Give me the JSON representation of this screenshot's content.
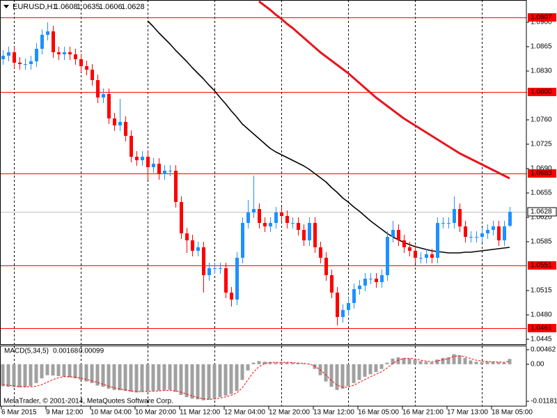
{
  "chart_data": {
    "type": "candlestick",
    "symbol": "EURUSD,H1",
    "up_color": "#1e90ff",
    "down_color": "#ff0000",
    "open": [
      1.0847,
      1.0852,
      1.0857,
      1.0842,
      1.084,
      1.084,
      1.0844,
      1.0862,
      1.0882,
      1.0887,
      1.0857,
      1.0854,
      1.0857,
      1.0854,
      1.0847,
      1.0837,
      1.0832,
      1.0817,
      1.0792,
      1.0797,
      1.0762,
      1.0752,
      1.0757,
      1.0737,
      1.0707,
      1.0702,
      1.0707,
      1.0692,
      1.0697,
      1.0682,
      1.0687,
      1.0687,
      1.0642,
      1.0597,
      1.0587,
      1.0572,
      1.0577,
      1.0537,
      1.0547,
      1.0547,
      1.0547,
      1.0512,
      1.0502,
      1.0562,
      1.0612,
      1.0627,
      1.0632,
      1.0612,
      1.0607,
      1.0612,
      1.0627,
      1.0622,
      1.0612,
      1.0612,
      1.0602,
      1.0587,
      1.0612,
      1.0577,
      1.0562,
      1.0537,
      1.0512,
      1.0477,
      1.0487,
      1.0497,
      1.0517,
      1.0522,
      1.0532,
      1.0532,
      1.0527,
      1.0537,
      1.0592,
      1.0602,
      1.0587,
      1.0577,
      1.0572,
      1.0562,
      1.0562,
      1.0567,
      1.0562,
      1.0612,
      1.0612,
      1.0612,
      1.0632,
      1.0607,
      1.0592,
      1.0592,
      1.0592,
      1.0597,
      1.0602,
      1.0607,
      1.0587,
      1.0608
    ],
    "high": [
      1.086,
      1.0865,
      1.0865,
      1.085,
      1.0848,
      1.0852,
      1.087,
      1.089,
      1.09,
      1.0895,
      1.0865,
      1.0865,
      1.0865,
      1.0862,
      1.0855,
      1.0845,
      1.084,
      1.0825,
      1.0805,
      1.0805,
      1.077,
      1.079,
      1.0765,
      1.0745,
      1.0715,
      1.0715,
      1.0715,
      1.0705,
      1.0705,
      1.0695,
      1.0695,
      1.0695,
      1.065,
      1.0605,
      1.0595,
      1.0585,
      1.0585,
      1.0555,
      1.0555,
      1.0555,
      1.0555,
      1.052,
      1.057,
      1.062,
      1.0645,
      1.068,
      1.064,
      1.062,
      1.062,
      1.0635,
      1.0635,
      1.063,
      1.062,
      1.062,
      1.061,
      1.062,
      1.062,
      1.0585,
      1.057,
      1.0545,
      1.052,
      1.0495,
      1.0505,
      1.0525,
      1.053,
      1.054,
      1.054,
      1.054,
      1.0545,
      1.06,
      1.0615,
      1.061,
      1.0595,
      1.0585,
      1.058,
      1.057,
      1.0575,
      1.0575,
      1.062,
      1.062,
      1.062,
      1.065,
      1.064,
      1.0615,
      1.06,
      1.06,
      1.0605,
      1.061,
      1.0615,
      1.0615,
      1.0615,
      1.0635
    ],
    "low": [
      1.0839,
      1.0844,
      1.0834,
      1.0832,
      1.0832,
      1.0832,
      1.0836,
      1.0854,
      1.0874,
      1.0849,
      1.0846,
      1.0846,
      1.0846,
      1.0839,
      1.0829,
      1.0824,
      1.0809,
      1.0784,
      1.0784,
      1.0754,
      1.0744,
      1.0744,
      1.0729,
      1.0699,
      1.0694,
      1.0694,
      1.0674,
      1.0684,
      1.0674,
      1.0674,
      1.0679,
      1.0634,
      1.0589,
      1.0569,
      1.0564,
      1.0564,
      1.0512,
      1.0529,
      1.0539,
      1.0539,
      1.0504,
      1.0492,
      1.0494,
      1.0554,
      1.0604,
      1.0619,
      1.0604,
      1.0599,
      1.0599,
      1.0604,
      1.0614,
      1.0604,
      1.0604,
      1.0594,
      1.0579,
      1.0579,
      1.0569,
      1.0554,
      1.0529,
      1.0504,
      1.0465,
      1.0469,
      1.0479,
      1.0489,
      1.0509,
      1.0514,
      1.0524,
      1.0519,
      1.0519,
      1.0529,
      1.0584,
      1.0579,
      1.0569,
      1.0564,
      1.0554,
      1.0554,
      1.0554,
      1.0554,
      1.0554,
      1.0604,
      1.0604,
      1.0604,
      1.0599,
      1.0584,
      1.0584,
      1.0584,
      1.0584,
      1.0589,
      1.0594,
      1.0579,
      1.0579,
      1.0606
    ],
    "close": [
      1.0852,
      1.0857,
      1.0842,
      1.084,
      1.084,
      1.0844,
      1.0862,
      1.0882,
      1.0887,
      1.0857,
      1.0854,
      1.0857,
      1.0854,
      1.0847,
      1.0837,
      1.0832,
      1.0817,
      1.0792,
      1.0797,
      1.0762,
      1.0752,
      1.0757,
      1.0737,
      1.0707,
      1.0702,
      1.0707,
      1.0692,
      1.0697,
      1.0682,
      1.0687,
      1.0687,
      1.0642,
      1.0597,
      1.0587,
      1.0572,
      1.0577,
      1.0537,
      1.0547,
      1.0547,
      1.0547,
      1.0512,
      1.0502,
      1.0562,
      1.0612,
      1.0627,
      1.0632,
      1.0612,
      1.0607,
      1.0612,
      1.0627,
      1.0622,
      1.0612,
      1.0612,
      1.0602,
      1.0587,
      1.0612,
      1.0577,
      1.0562,
      1.0537,
      1.0512,
      1.0477,
      1.0487,
      1.0497,
      1.0517,
      1.0522,
      1.0532,
      1.0532,
      1.0527,
      1.0537,
      1.0592,
      1.0602,
      1.0587,
      1.0577,
      1.0572,
      1.0562,
      1.0562,
      1.0567,
      1.0562,
      1.0612,
      1.0612,
      1.0612,
      1.0632,
      1.0607,
      1.0592,
      1.0592,
      1.0592,
      1.0597,
      1.0602,
      1.0607,
      1.0587,
      1.0607,
      1.0628
    ],
    "moving_averages": [
      {
        "color": "#000000",
        "values": [
          null,
          null,
          null,
          null,
          null,
          null,
          null,
          null,
          null,
          null,
          null,
          null,
          null,
          null,
          null,
          null,
          null,
          null,
          null,
          null,
          null,
          null,
          null,
          null,
          null,
          null,
          1.0902,
          1.0894,
          1.0885,
          1.0877,
          1.0869,
          1.086,
          1.0852,
          1.0844,
          1.0835,
          1.0827,
          1.0819,
          1.081,
          1.0802,
          1.0792,
          1.0783,
          1.0773,
          1.0764,
          1.0754,
          1.0747,
          1.074,
          1.0733,
          1.0726,
          1.0719,
          1.0714,
          1.071,
          1.0706,
          1.0702,
          1.0698,
          1.0694,
          1.0689,
          1.0683,
          1.0677,
          1.0671,
          1.0663,
          1.0656,
          1.0648,
          1.0642,
          1.0635,
          1.0629,
          1.0622,
          1.0615,
          1.0609,
          1.0603,
          1.0597,
          1.0592,
          1.0588,
          1.0584,
          1.0581,
          1.0578,
          1.0576,
          1.0574,
          1.0572,
          1.0571,
          1.057,
          1.0569,
          1.0569,
          1.0569,
          1.057,
          1.057,
          1.0571,
          1.0572,
          1.0573,
          1.0574,
          1.0575,
          1.0576,
          1.0577
        ]
      },
      {
        "color": "#e8141c",
        "values": [
          null,
          null,
          null,
          null,
          null,
          null,
          null,
          null,
          null,
          null,
          null,
          null,
          null,
          null,
          null,
          null,
          null,
          null,
          null,
          null,
          null,
          null,
          null,
          null,
          null,
          null,
          null,
          null,
          null,
          null,
          null,
          null,
          null,
          null,
          null,
          null,
          null,
          null,
          null,
          null,
          null,
          null,
          null,
          null,
          null,
          null,
          1.093,
          1.0924,
          1.0918,
          1.0911,
          1.0905,
          1.0898,
          1.0892,
          1.0885,
          1.0878,
          1.0871,
          1.0864,
          1.0857,
          1.0851,
          1.0845,
          1.0839,
          1.0833,
          1.0827,
          1.082,
          1.0813,
          1.0806,
          1.0799,
          1.0792,
          1.0786,
          1.078,
          1.0774,
          1.0768,
          1.0762,
          1.0757,
          1.0752,
          1.0747,
          1.0742,
          1.0737,
          1.0732,
          1.0727,
          1.0722,
          1.0717,
          1.0712,
          1.0708,
          1.0704,
          1.07,
          1.0696,
          1.0692,
          1.0688,
          1.0684,
          1.068,
          1.0676
        ]
      }
    ],
    "levels": [
      1.0907,
      {
        "value": 1.08,
        "label": "1.0800"
      },
      1.0683,
      1.0551,
      1.0461
    ],
    "level_color": "#ff0000",
    "xlim": [
      -0.5,
      94
    ],
    "ylim": [
      1.0438,
      1.0932
    ],
    "yticks": [
      {
        "value": 1.09,
        "label": "1.0900"
      },
      1.0865,
      {
        "value": 1.083,
        "label": "1.0830"
      },
      {
        "value": 1.076,
        "label": "1.0760"
      },
      1.0725,
      {
        "value": 1.069,
        "label": "1.0690"
      },
      1.0655,
      {
        "value": 1.062,
        "label": "1.0620"
      },
      1.0585,
      1.0515,
      {
        "value": 1.048,
        "label": "1.0480"
      },
      1.0445
    ],
    "xticks": [
      {
        "value": 0,
        "label": "6 Mar 2015"
      },
      {
        "value": 8,
        "label": "9 Mar 12:00"
      },
      {
        "value": 16,
        "label": "10 Mar 04:00"
      },
      {
        "value": 24,
        "label": "10 Mar 20:00"
      },
      {
        "value": 32,
        "label": "11 Mar 12:00"
      },
      {
        "value": 40,
        "label": "12 Mar 04:00"
      },
      {
        "value": 48,
        "label": "12 Mar 20:00"
      },
      {
        "value": 56,
        "label": "13 Mar 12:00"
      },
      {
        "value": 64,
        "label": "16 Mar 05:00"
      },
      {
        "value": 72,
        "label": "16 Mar 21:00"
      },
      {
        "value": 80,
        "label": "17 Mar 13:00"
      },
      {
        "value": 88,
        "label": "18 Mar 05:00"
      }
    ],
    "xgrid": [
      2,
      14,
      26,
      38,
      50,
      62,
      74,
      86
    ],
    "macd": {
      "title": "MACD(5,34,5)",
      "hist_color": "#a0a0a0",
      "signal_color": "#ff0000",
      "histogram": [
        -0.007,
        -0.0072,
        -0.0073,
        -0.0074,
        -0.0073,
        -0.007,
        -0.006,
        -0.0045,
        -0.0035,
        -0.0036,
        -0.0038,
        -0.004,
        -0.0042,
        -0.0045,
        -0.005,
        -0.0055,
        -0.006,
        -0.0068,
        -0.0072,
        -0.0078,
        -0.0082,
        -0.0083,
        -0.0085,
        -0.0088,
        -0.009,
        -0.0088,
        -0.0087,
        -0.0085,
        -0.0084,
        -0.0083,
        -0.0082,
        -0.0088,
        -0.0098,
        -0.0105,
        -0.011,
        -0.0112,
        -0.0115,
        -0.0113,
        -0.011,
        -0.0105,
        -0.01,
        -0.0095,
        -0.0085,
        -0.005,
        -0.002,
        0.0005,
        0.001,
        0.0008,
        0.0006,
        0.0005,
        0.0006,
        0.0006,
        0.0005,
        0.0004,
        0.0002,
        0.0,
        -0.0015,
        -0.0035,
        -0.0055,
        -0.0072,
        -0.0082,
        -0.0078,
        -0.007,
        -0.006,
        -0.005,
        -0.004,
        -0.0032,
        -0.0025,
        -0.0015,
        0.0005,
        0.0018,
        0.0022,
        0.002,
        0.0018,
        0.0015,
        0.001,
        0.0008,
        0.0006,
        0.0015,
        0.002,
        0.0022,
        0.0032,
        0.0028,
        0.002,
        0.0012,
        0.0008,
        0.0007,
        0.0008,
        0.0008,
        0.0006,
        0.0005,
        0.00168
      ],
      "signal": [
        -0.0065,
        -0.0067,
        -0.0069,
        -0.0071,
        -0.0072,
        -0.0072,
        -0.007,
        -0.0065,
        -0.0057,
        -0.0049,
        -0.0043,
        -0.004,
        -0.004,
        -0.0041,
        -0.0044,
        -0.0048,
        -0.0053,
        -0.0058,
        -0.0064,
        -0.007,
        -0.0075,
        -0.0079,
        -0.0082,
        -0.0085,
        -0.0087,
        -0.0087,
        -0.0087,
        -0.0086,
        -0.0085,
        -0.0084,
        -0.0083,
        -0.0085,
        -0.0089,
        -0.0095,
        -0.0101,
        -0.0106,
        -0.011,
        -0.0112,
        -0.0111,
        -0.0108,
        -0.0104,
        -0.0099,
        -0.0092,
        -0.0075,
        -0.005,
        -0.0025,
        -0.0008,
        0.0002,
        0.0006,
        0.0006,
        0.0006,
        0.0006,
        0.0005,
        0.0004,
        0.0003,
        0.0001,
        -0.0006,
        -0.0018,
        -0.0034,
        -0.0052,
        -0.0066,
        -0.0073,
        -0.0073,
        -0.0067,
        -0.0058,
        -0.0049,
        -0.004,
        -0.0032,
        -0.0024,
        -0.0012,
        0.0002,
        0.0013,
        0.0018,
        0.0019,
        0.0017,
        0.0013,
        0.001,
        0.0008,
        0.001,
        0.0014,
        0.0018,
        0.0025,
        0.0027,
        0.0024,
        0.0018,
        0.0013,
        0.001,
        0.0009,
        0.0008,
        0.0007,
        0.0006,
        0.00099
      ],
      "ylim": [
        -0.01181,
        0.00462
      ],
      "yticks": [
        0.00462,
        {
          "value": 0,
          "label": "0.00"
        },
        -0.01181
      ]
    },
    "copyright": "MetaTrader, © 2001-2014, MetaQuotes Software Corp."
  }
}
